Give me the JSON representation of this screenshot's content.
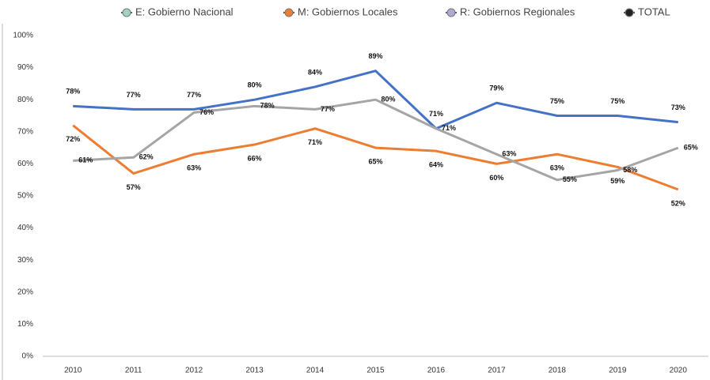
{
  "chart_data": {
    "type": "line",
    "categories": [
      "2010",
      "2011",
      "2012",
      "2013",
      "2014",
      "2015",
      "2016",
      "2017",
      "2018",
      "2019",
      "2020"
    ],
    "series": [
      {
        "name": "E: Gobierno Nacional",
        "color": "#4472c4",
        "marker_color": "#9fd5c8",
        "values": [
          78,
          77,
          77,
          80,
          84,
          89,
          71,
          79,
          75,
          75,
          73
        ],
        "value_labels": [
          "78%",
          "77%",
          "77%",
          "80%",
          "84%",
          "89%",
          "71%",
          "79%",
          "75%",
          "75%",
          "73%"
        ]
      },
      {
        "name": "M: Gobiernos Locales",
        "color": "#ed7d31",
        "marker_color": "#ed7d31",
        "values": [
          72,
          57,
          63,
          66,
          71,
          65,
          64,
          60,
          63,
          59,
          52
        ],
        "value_labels": [
          "72%",
          "57%",
          "63%",
          "66%",
          "71%",
          "65%",
          "64%",
          "60%",
          "63%",
          "59%",
          "52%"
        ]
      },
      {
        "name": "R: Gobiernos Regionales",
        "color": "#a5a5a5",
        "marker_color": "#b4a7d6",
        "values": [
          61,
          62,
          76,
          78,
          77,
          80,
          71,
          63,
          55,
          58,
          65
        ],
        "value_labels": [
          "61%",
          "62%",
          "76%",
          "78%",
          "77%",
          "80%",
          "71%",
          "63%",
          "55%",
          "58%",
          "65%"
        ]
      },
      {
        "name": "TOTAL",
        "color": "#222222",
        "marker_color": "#222222",
        "values": [
          null,
          null,
          null,
          null,
          null,
          null,
          null,
          null,
          null,
          null,
          null
        ]
      }
    ],
    "ylim": [
      0,
      100
    ],
    "yticks": [
      {
        "value": 0,
        "label": "0%"
      },
      {
        "value": 10,
        "label": "10%"
      },
      {
        "value": 20,
        "label": "20%"
      },
      {
        "value": 30,
        "label": "30%"
      },
      {
        "value": 40,
        "label": "40%"
      },
      {
        "value": 50,
        "label": "50%"
      },
      {
        "value": 60,
        "label": "60%"
      },
      {
        "value": 70,
        "label": "70%"
      },
      {
        "value": 80,
        "label": "80%"
      },
      {
        "value": 90,
        "label": "90%"
      },
      {
        "value": 100,
        "label": "100%"
      }
    ],
    "legend": "top",
    "grid": false
  }
}
